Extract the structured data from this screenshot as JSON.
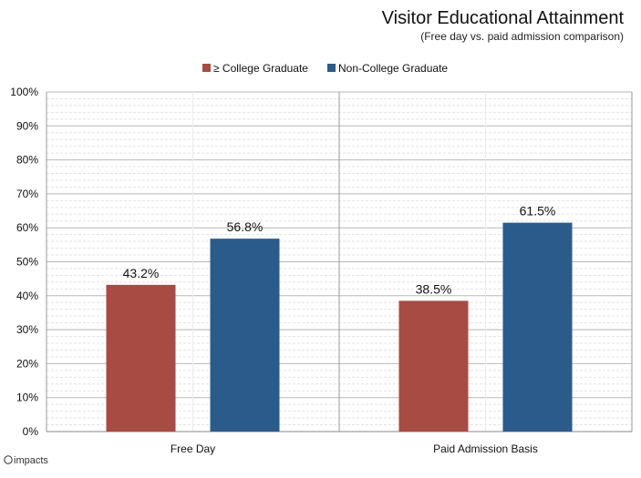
{
  "chart_data": {
    "type": "bar",
    "title": "Visitor Educational Attainment",
    "subtitle": "(Free day vs. paid admission comparison)",
    "categories": [
      "Free Day",
      "Paid Admission Basis"
    ],
    "series": [
      {
        "name": "≥ College Graduate",
        "values": [
          43.2,
          38.5
        ],
        "color": "#A84B43"
      },
      {
        "name": "Non-College Graduate",
        "values": [
          56.8,
          61.5
        ],
        "color": "#2B5B8A"
      }
    ],
    "data_labels": [
      [
        "43.2%",
        "38.5%"
      ],
      [
        "56.8%",
        "61.5%"
      ]
    ],
    "y_ticks": [
      "0%",
      "10%",
      "20%",
      "30%",
      "40%",
      "50%",
      "60%",
      "70%",
      "80%",
      "90%",
      "100%"
    ],
    "ylim": [
      0,
      100
    ],
    "grid": true,
    "legend_position": "top-center"
  },
  "logo": {
    "text": "impacts"
  }
}
